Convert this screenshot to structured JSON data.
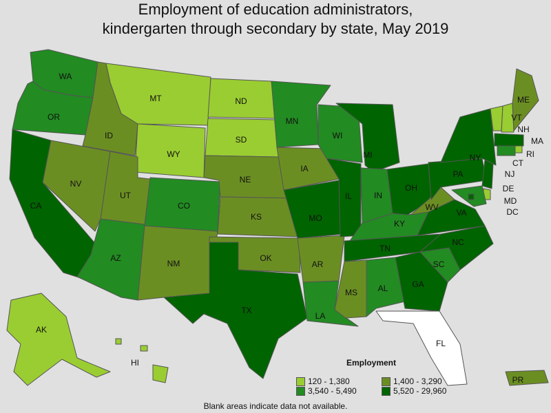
{
  "title_line1": "Employment of education administrators,",
  "title_line2": "kindergarten through secondary by state, May 2019",
  "legend": {
    "title": "Employment",
    "classes": [
      {
        "label": "120 - 1,380",
        "color": "#9acd32"
      },
      {
        "label": "1,400 - 3,290",
        "color": "#6b8e23"
      },
      {
        "label": "3,540 - 5,490",
        "color": "#228b22"
      },
      {
        "label": "5,520 - 29,960",
        "color": "#006400"
      }
    ]
  },
  "footnote": "Blank areas indicate data not available.",
  "states": [
    {
      "abbr": "WA",
      "class": 2
    },
    {
      "abbr": "OR",
      "class": 2
    },
    {
      "abbr": "CA",
      "class": 3
    },
    {
      "abbr": "ID",
      "class": 1
    },
    {
      "abbr": "NV",
      "class": 1
    },
    {
      "abbr": "MT",
      "class": 0
    },
    {
      "abbr": "WY",
      "class": 0
    },
    {
      "abbr": "UT",
      "class": 1
    },
    {
      "abbr": "AZ",
      "class": 2
    },
    {
      "abbr": "CO",
      "class": 2
    },
    {
      "abbr": "NM",
      "class": 1
    },
    {
      "abbr": "ND",
      "class": 0
    },
    {
      "abbr": "SD",
      "class": 0
    },
    {
      "abbr": "NE",
      "class": 1
    },
    {
      "abbr": "KS",
      "class": 1
    },
    {
      "abbr": "OK",
      "class": 1
    },
    {
      "abbr": "TX",
      "class": 3
    },
    {
      "abbr": "MN",
      "class": 2
    },
    {
      "abbr": "IA",
      "class": 1
    },
    {
      "abbr": "MO",
      "class": 3
    },
    {
      "abbr": "AR",
      "class": 1
    },
    {
      "abbr": "LA",
      "class": 2
    },
    {
      "abbr": "WI",
      "class": 2
    },
    {
      "abbr": "IL",
      "class": 3
    },
    {
      "abbr": "MI",
      "class": 3
    },
    {
      "abbr": "IN",
      "class": 2
    },
    {
      "abbr": "OH",
      "class": 3
    },
    {
      "abbr": "KY",
      "class": 2
    },
    {
      "abbr": "TN",
      "class": 3
    },
    {
      "abbr": "MS",
      "class": 1
    },
    {
      "abbr": "AL",
      "class": 2
    },
    {
      "abbr": "GA",
      "class": 3
    },
    {
      "abbr": "FL",
      "class": null
    },
    {
      "abbr": "SC",
      "class": 2
    },
    {
      "abbr": "NC",
      "class": 3
    },
    {
      "abbr": "VA",
      "class": 3
    },
    {
      "abbr": "WV",
      "class": 1
    },
    {
      "abbr": "PA",
      "class": 3
    },
    {
      "abbr": "NY",
      "class": 3
    },
    {
      "abbr": "VT",
      "class": 0
    },
    {
      "abbr": "NH",
      "class": 0
    },
    {
      "abbr": "ME",
      "class": 1
    },
    {
      "abbr": "MA",
      "class": 3
    },
    {
      "abbr": "RI",
      "class": 0
    },
    {
      "abbr": "CT",
      "class": 2
    },
    {
      "abbr": "NJ",
      "class": 3
    },
    {
      "abbr": "DE",
      "class": 0
    },
    {
      "abbr": "MD",
      "class": 2
    },
    {
      "abbr": "DC",
      "class": 3
    },
    {
      "abbr": "AK",
      "class": 0
    },
    {
      "abbr": "HI",
      "class": 0
    },
    {
      "abbr": "PR",
      "class": 1
    }
  ]
}
